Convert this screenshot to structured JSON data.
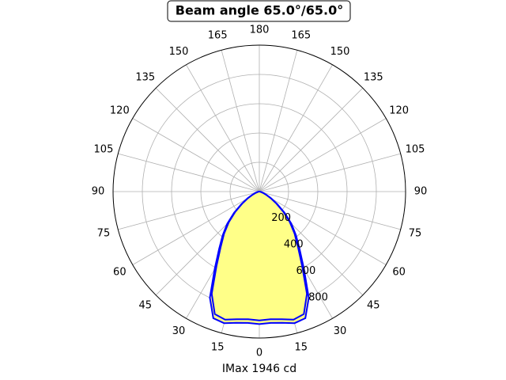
{
  "chart_data": {
    "type": "polar",
    "title": "Beam angle 65.0°/65.0°",
    "xlabel": "IMax 1946 cd",
    "x": [
      -90,
      -85,
      -80,
      -75,
      -70,
      -65,
      -60,
      -55,
      -50,
      -45,
      -40,
      -35,
      -30,
      -25,
      -20,
      -15,
      -10,
      -5,
      0,
      5,
      10,
      15,
      20,
      25,
      30,
      35,
      40,
      45,
      50,
      55,
      60,
      65,
      70,
      75,
      80,
      85,
      90
    ],
    "series": [
      {
        "color": "#0000ff",
        "fill": "#ffff88",
        "values": [
          0,
          2,
          6,
          15,
          30,
          55,
          95,
          150,
          225,
          310,
          390,
          480,
          610,
          800,
          920,
          930,
          910,
          900,
          905,
          900,
          910,
          930,
          920,
          800,
          610,
          480,
          390,
          310,
          225,
          150,
          95,
          55,
          30,
          15,
          6,
          2,
          0
        ]
      },
      {
        "color": "#0000ff",
        "values": [
          0,
          2,
          6,
          14,
          28,
          52,
          90,
          143,
          215,
          295,
          375,
          460,
          585,
          770,
          890,
          905,
          885,
          875,
          880,
          875,
          885,
          905,
          890,
          770,
          585,
          460,
          375,
          295,
          215,
          143,
          90,
          52,
          28,
          14,
          6,
          2,
          0
        ]
      }
    ],
    "rlim": [
      0,
      1000
    ],
    "rticks": [
      200,
      400,
      600,
      800
    ],
    "thetaticks": [
      {
        "value": -165,
        "label": "165"
      },
      {
        "value": -150,
        "label": "150"
      },
      {
        "value": -135,
        "label": "135"
      },
      {
        "value": -120,
        "label": "120"
      },
      {
        "value": -105,
        "label": "105"
      },
      {
        "value": -90,
        "label": "90"
      },
      {
        "value": -75,
        "label": "75"
      },
      {
        "value": -60,
        "label": "60"
      },
      {
        "value": -45,
        "label": "45"
      },
      {
        "value": -30,
        "label": "30"
      },
      {
        "value": -15,
        "label": "15"
      },
      0,
      15,
      30,
      45,
      60,
      75,
      90,
      105,
      120,
      135,
      150,
      165,
      180
    ],
    "grid": true
  }
}
